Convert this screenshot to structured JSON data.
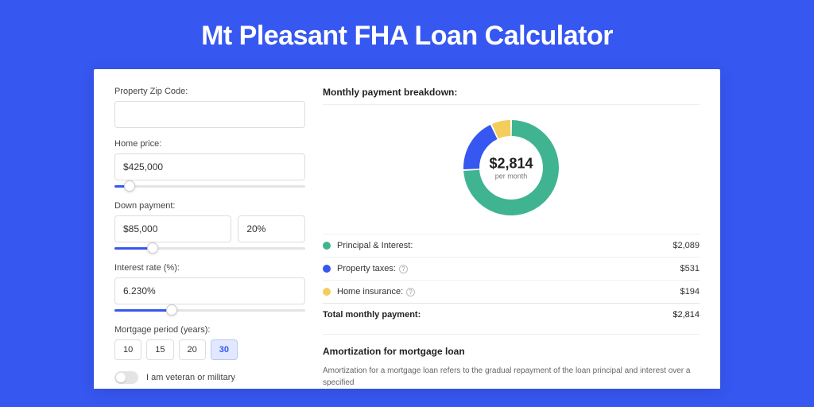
{
  "page": {
    "title": "Mt Pleasant FHA Loan Calculator",
    "background_color": "#3657f0",
    "card_background": "#ffffff"
  },
  "form": {
    "zip": {
      "label": "Property Zip Code:",
      "value": ""
    },
    "home_price": {
      "label": "Home price:",
      "value": "$425,000",
      "slider_pct": 8
    },
    "down_payment": {
      "label": "Down payment:",
      "amount": "$85,000",
      "pct": "20%",
      "slider_pct": 20
    },
    "interest_rate": {
      "label": "Interest rate (%):",
      "value": "6.230%",
      "slider_pct": 30
    },
    "mortgage_period": {
      "label": "Mortgage period (years):",
      "options": [
        "10",
        "15",
        "20",
        "30"
      ],
      "selected": "30"
    },
    "veteran": {
      "label": "I am veteran or military",
      "on": false
    }
  },
  "breakdown": {
    "title": "Monthly payment breakdown:",
    "donut": {
      "type": "donut",
      "amount": "$2,814",
      "sub": "per month",
      "outer_radius": 60,
      "inner_radius": 40,
      "background": "#ffffff",
      "slices": [
        {
          "label": "Principal & Interest",
          "value": 2089,
          "pct": 74.2,
          "color": "#40b491"
        },
        {
          "label": "Property taxes",
          "value": 531,
          "pct": 18.9,
          "color": "#3657f0"
        },
        {
          "label": "Home insurance",
          "value": 194,
          "pct": 6.9,
          "color": "#f4cd5d"
        }
      ]
    },
    "items": [
      {
        "label": "Principal & Interest:",
        "value": "$2,089",
        "color": "#40b491",
        "help": false
      },
      {
        "label": "Property taxes:",
        "value": "$531",
        "color": "#3657f0",
        "help": true
      },
      {
        "label": "Home insurance:",
        "value": "$194",
        "color": "#f4cd5d",
        "help": true
      }
    ],
    "total": {
      "label": "Total monthly payment:",
      "value": "$2,814"
    }
  },
  "amortization": {
    "title": "Amortization for mortgage loan",
    "text": "Amortization for a mortgage loan refers to the gradual repayment of the loan principal and interest over a specified"
  }
}
